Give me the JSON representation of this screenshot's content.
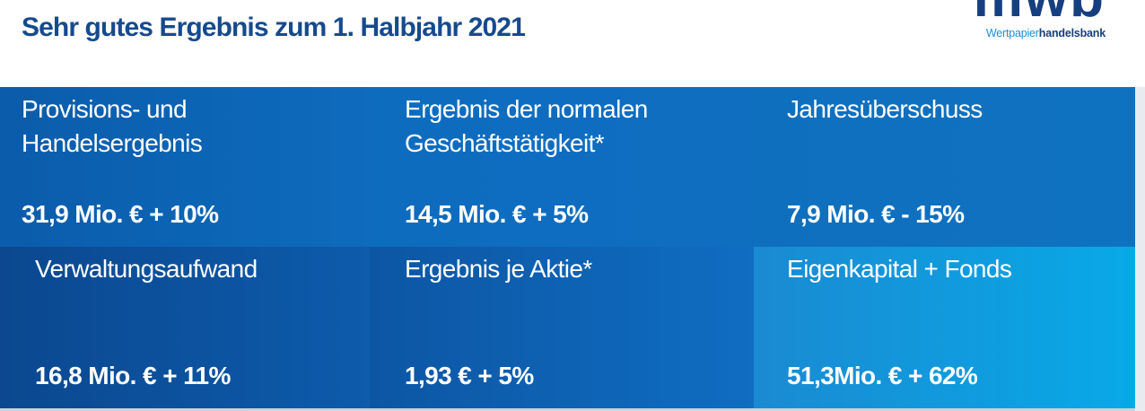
{
  "header": {
    "title": "Sehr gutes Ergebnis zum 1. Halbjahr 2021",
    "logo": {
      "mark": "mwb",
      "tagline_part1": "Wertpapier",
      "tagline_part2": "handelsbank"
    }
  },
  "tiles": [
    {
      "label": [
        "Provisions- und",
        "Handelsergebnis"
      ],
      "value": "31,9 Mio. € + 10%"
    },
    {
      "label": [
        "Ergebnis der normalen",
        "Geschäftstätigkeit*"
      ],
      "value": "14,5 Mio. € + 5%"
    },
    {
      "label": [
        "Jahresüberschuss"
      ],
      "value": "7,9 Mio. € - 15%"
    },
    {
      "label": [
        "Verwaltungsaufwand"
      ],
      "value": "16,8 Mio. € + 11%"
    },
    {
      "label": [
        "Ergebnis je Aktie*"
      ],
      "value": "1,93 € + 5%"
    },
    {
      "label": [
        "Eigenkapital + Fonds"
      ],
      "value": "51,3Mio. € + 62%"
    }
  ]
}
